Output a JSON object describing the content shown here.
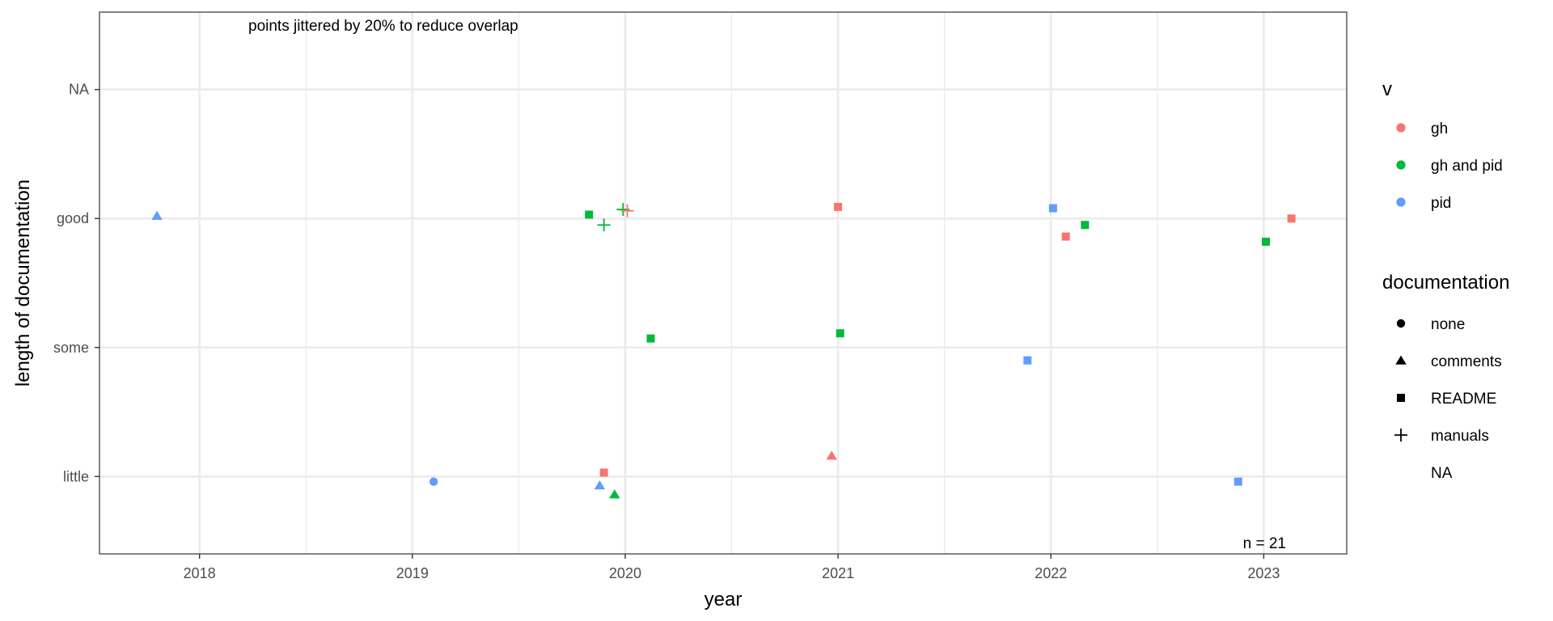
{
  "chart_data": {
    "type": "scatter",
    "xlabel": "year",
    "ylabel": "length of documentation",
    "annotation_top": "points jittered by 20% to reduce overlap",
    "annotation_n": "n = 21",
    "xlim": [
      2017.53,
      2023.39
    ],
    "x_ticks": [
      2018,
      2019,
      2020,
      2021,
      2022,
      2023
    ],
    "x_tick_labels": [
      "2018",
      "2019",
      "2020",
      "2021",
      "2022",
      "2023"
    ],
    "y_categories": [
      "little",
      "some",
      "good",
      "NA"
    ],
    "ylim": [
      0.4,
      4.6
    ],
    "grid": true,
    "legend_position": "right",
    "color_legend": {
      "title": "v",
      "items": [
        {
          "label": "gh",
          "color": "#F8766D"
        },
        {
          "label": "gh and pid",
          "color": "#00BA38"
        },
        {
          "label": "pid",
          "color": "#619CFF"
        }
      ]
    },
    "shape_legend": {
      "title": "documentation",
      "items": [
        {
          "label": "none",
          "shape": "circle"
        },
        {
          "label": "comments",
          "shape": "triangle"
        },
        {
          "label": "README",
          "shape": "square"
        },
        {
          "label": "manuals",
          "shape": "plus"
        },
        {
          "label": "NA",
          "shape": "none"
        }
      ]
    },
    "points": [
      {
        "x": 2017.8,
        "y": 3.02,
        "v": "pid",
        "doc": "comments"
      },
      {
        "x": 2019.1,
        "y": 0.96,
        "v": "pid",
        "doc": "none"
      },
      {
        "x": 2019.83,
        "y": 3.03,
        "v": "gh and pid",
        "doc": "README"
      },
      {
        "x": 2019.9,
        "y": 2.95,
        "v": "gh and pid",
        "doc": "manuals"
      },
      {
        "x": 2019.99,
        "y": 3.07,
        "v": "gh and pid",
        "doc": "manuals"
      },
      {
        "x": 2020.01,
        "y": 3.06,
        "v": "gh",
        "doc": "manuals"
      },
      {
        "x": 2020.12,
        "y": 2.07,
        "v": "gh and pid",
        "doc": "README"
      },
      {
        "x": 2019.9,
        "y": 1.03,
        "v": "gh",
        "doc": "README"
      },
      {
        "x": 2019.88,
        "y": 0.93,
        "v": "pid",
        "doc": "comments"
      },
      {
        "x": 2019.95,
        "y": 0.86,
        "v": "gh and pid",
        "doc": "comments"
      },
      {
        "x": 2021.0,
        "y": 3.09,
        "v": "gh",
        "doc": "README"
      },
      {
        "x": 2021.01,
        "y": 2.11,
        "v": "gh and pid",
        "doc": "README"
      },
      {
        "x": 2020.97,
        "y": 1.16,
        "v": "gh",
        "doc": "comments"
      },
      {
        "x": 2022.01,
        "y": 3.08,
        "v": "pid",
        "doc": "README"
      },
      {
        "x": 2022.07,
        "y": 2.86,
        "v": "gh",
        "doc": "README"
      },
      {
        "x": 2022.16,
        "y": 2.95,
        "v": "gh and pid",
        "doc": "README"
      },
      {
        "x": 2021.89,
        "y": 1.9,
        "v": "pid",
        "doc": "README"
      },
      {
        "x": 2023.13,
        "y": 3.0,
        "v": "gh",
        "doc": "README"
      },
      {
        "x": 2023.01,
        "y": 2.82,
        "v": "gh and pid",
        "doc": "README"
      },
      {
        "x": 2022.88,
        "y": 0.96,
        "v": "pid",
        "doc": "README"
      }
    ]
  }
}
